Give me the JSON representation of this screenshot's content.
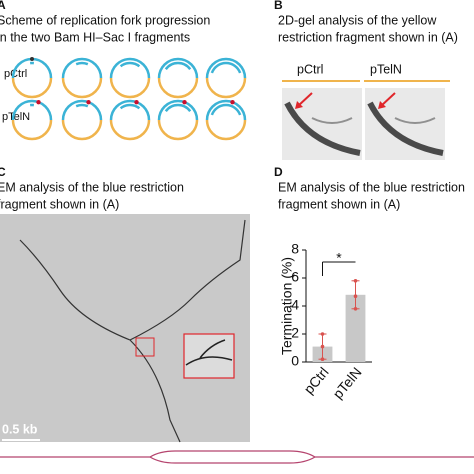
{
  "panel_a": {
    "letter": "A",
    "title_lines": [
      "Scheme of replication fork progression",
      "in the two Bam HI–Sac I fragments"
    ],
    "rows": [
      "pCtrl",
      "pTelN"
    ]
  },
  "panel_b": {
    "letter": "B",
    "title_lines": [
      "2D-gel analysis of the yellow",
      "restriction fragment shown in (A)"
    ],
    "lanes": [
      "pCtrl",
      "pTelN"
    ]
  },
  "panel_c": {
    "letter": "C",
    "title_lines": [
      "EM analysis of the blue restriction",
      "fragment shown in (A)"
    ],
    "scale_bar": "0.5 kb"
  },
  "chart_data": {
    "type": "bar",
    "letter": "D",
    "title_lines": [
      "EM analysis of the blue restriction",
      "fragment shown in (A)"
    ],
    "y_label": "Termination (%)",
    "categories": [
      "pCtrl",
      "pTelN"
    ],
    "values": [
      1.1,
      4.8
    ],
    "errors": [
      0.9,
      1.0
    ],
    "points": [
      [
        0.2,
        1.1,
        2.0
      ],
      [
        3.8,
        4.7,
        5.8
      ]
    ],
    "color": "#c8c8c8",
    "point_color": "#d9534f",
    "ylim": [
      0,
      8
    ],
    "yticks": [
      0,
      2,
      4,
      6,
      8
    ],
    "significance": "*"
  }
}
